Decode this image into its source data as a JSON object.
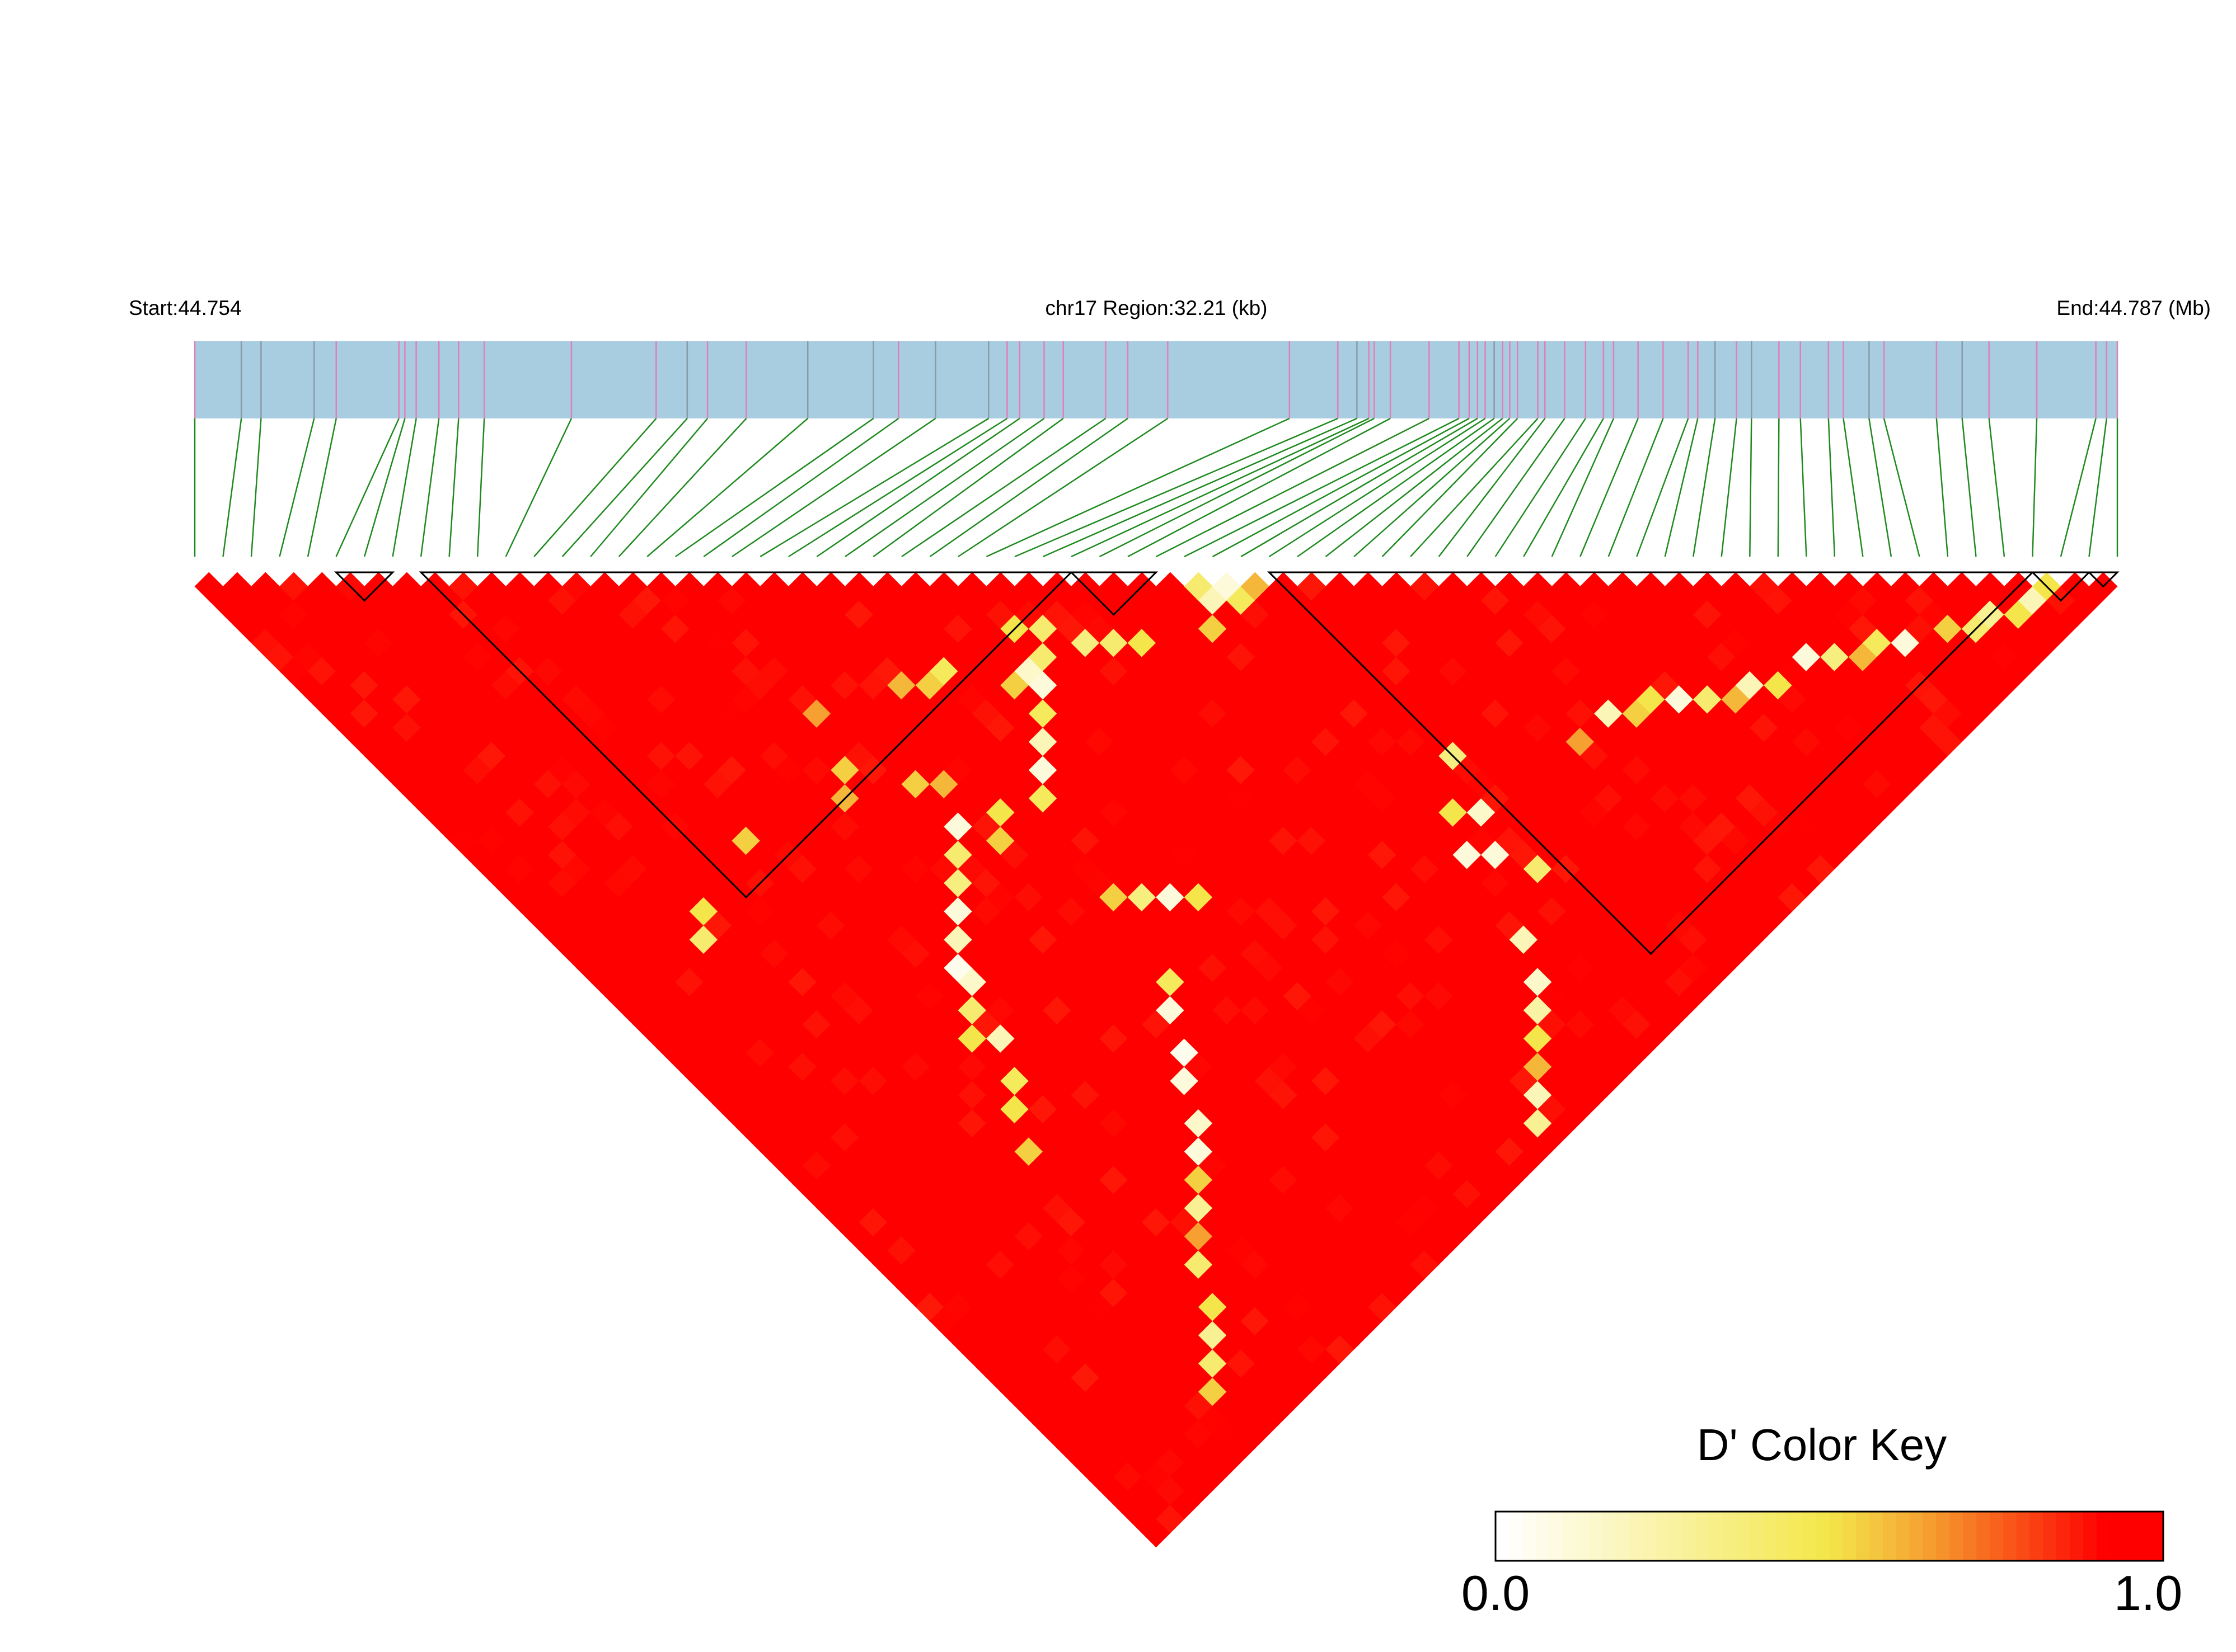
{
  "chart_data": {
    "type": "heatmap",
    "subtype": "linkage-disequilibrium triangle",
    "header": {
      "start_label": "Start:44.754",
      "region_label": "chr17 Region:32.21 (kb)",
      "end_label": "End:44.787 (Mb)"
    },
    "region": {
      "chromosome": "chr17",
      "start_mb": 44.754,
      "end_mb": 44.787,
      "length_kb": 32.21
    },
    "snp_count": 69,
    "snp_positions_kb": [
      0.0,
      0.78,
      1.11,
      2.0,
      2.37,
      3.42,
      3.52,
      3.71,
      4.09,
      4.42,
      4.85,
      6.31,
      7.73,
      8.25,
      8.59,
      9.24,
      10.27,
      11.37,
      11.79,
      12.41,
      13.3,
      13.61,
      13.82,
      14.23,
      14.55,
      15.26,
      15.63,
      16.3,
      18.34,
      19.15,
      19.47,
      19.67,
      19.76,
      20.03,
      20.68,
      21.18,
      21.35,
      21.49,
      21.62,
      21.77,
      21.91,
      22.03,
      22.16,
      22.5,
      22.62,
      22.95,
      23.3,
      23.6,
      23.77,
      24.18,
      24.6,
      25.02,
      25.18,
      25.47,
      25.83,
      26.08,
      26.54,
      26.9,
      27.37,
      27.62,
      28.05,
      28.3,
      29.18,
      29.61,
      30.06,
      30.86,
      31.85,
      32.03,
      32.21
    ],
    "tag_snp_indices": [
      1,
      2,
      3,
      13,
      16,
      17,
      19,
      20,
      30,
      39,
      53,
      55,
      60,
      63
    ],
    "blocks": [
      {
        "id": 1,
        "first_snp": 5,
        "last_snp": 7
      },
      {
        "id": 2,
        "first_snp": 8,
        "last_snp": 31
      },
      {
        "id": 3,
        "first_snp": 31,
        "last_snp": 34
      },
      {
        "id": 4,
        "first_snp": 38,
        "last_snp": 65
      },
      {
        "id": 5,
        "first_snp": 65,
        "last_snp": 67
      },
      {
        "id": 6,
        "first_snp": 67,
        "last_snp": 68
      }
    ],
    "measure": "D'",
    "value_range": [
      0.0,
      1.0
    ],
    "low_dprime_pairs": [
      {
        "i": 35,
        "j": 36,
        "d": 0.4
      },
      {
        "i": 36,
        "j": 37,
        "d": 0.1
      },
      {
        "i": 35,
        "j": 37,
        "d": 0.2
      },
      {
        "i": 36,
        "j": 38,
        "d": 0.45
      },
      {
        "i": 34,
        "j": 38,
        "d": 0.55
      },
      {
        "i": 37,
        "j": 38,
        "d": 0.6
      },
      {
        "i": 64,
        "j": 66,
        "d": 0.2
      },
      {
        "i": 63,
        "j": 66,
        "d": 0.5
      },
      {
        "i": 65,
        "j": 66,
        "d": 0.5
      },
      {
        "i": 62,
        "j": 65,
        "d": 0.3
      },
      {
        "i": 61,
        "j": 65,
        "d": 0.4
      },
      {
        "i": 60,
        "j": 64,
        "d": 0.55
      },
      {
        "i": 58,
        "j": 63,
        "d": 0.1
      },
      {
        "i": 57,
        "j": 62,
        "d": 0.45
      },
      {
        "i": 56,
        "j": 62,
        "d": 0.6
      },
      {
        "i": 55,
        "j": 61,
        "d": 0.35
      },
      {
        "i": 54,
        "j": 60,
        "d": 0.1
      },
      {
        "i": 52,
        "j": 60,
        "d": 0.5
      },
      {
        "i": 51,
        "j": 59,
        "d": 0.2
      },
      {
        "i": 50,
        "j": 59,
        "d": 0.6
      },
      {
        "i": 49,
        "j": 58,
        "d": 0.4
      },
      {
        "i": 48,
        "j": 57,
        "d": 0.1
      },
      {
        "i": 47,
        "j": 56,
        "d": 0.5
      },
      {
        "i": 46,
        "j": 56,
        "d": 0.55
      },
      {
        "i": 45,
        "j": 55,
        "d": 0.2
      },
      {
        "i": 43,
        "j": 55,
        "d": 0.65
      },
      {
        "i": 38,
        "j": 51,
        "d": 0.35
      },
      {
        "i": 36,
        "j": 53,
        "d": 0.5
      },
      {
        "i": 37,
        "j": 54,
        "d": 0.15
      },
      {
        "i": 35,
        "j": 55,
        "d": 0.1
      },
      {
        "i": 36,
        "j": 56,
        "d": 0.1
      },
      {
        "i": 37,
        "j": 58,
        "d": 0.4
      },
      {
        "i": 34,
        "j": 60,
        "d": 0.2
      },
      {
        "i": 33,
        "j": 62,
        "d": 0.15
      },
      {
        "i": 32,
        "j": 63,
        "d": 0.25
      },
      {
        "i": 31,
        "j": 64,
        "d": 0.5
      },
      {
        "i": 30,
        "j": 65,
        "d": 0.6
      },
      {
        "i": 29,
        "j": 66,
        "d": 0.2
      },
      {
        "i": 28,
        "j": 67,
        "d": 0.3
      },
      {
        "i": 23,
        "j": 30,
        "d": 0.45
      },
      {
        "i": 22,
        "j": 30,
        "d": 0.55
      },
      {
        "i": 21,
        "j": 29,
        "d": 0.6
      },
      {
        "i": 17,
        "j": 27,
        "d": 0.65
      },
      {
        "i": 27,
        "j": 33,
        "d": 0.4
      },
      {
        "i": 26,
        "j": 33,
        "d": 0.15
      },
      {
        "i": 25,
        "j": 33,
        "d": 0.55
      },
      {
        "i": 26,
        "j": 34,
        "d": 0.1
      },
      {
        "i": 25,
        "j": 35,
        "d": 0.45
      },
      {
        "i": 24,
        "j": 36,
        "d": 0.2
      },
      {
        "i": 23,
        "j": 37,
        "d": 0.1
      },
      {
        "i": 22,
        "j": 38,
        "d": 0.45
      },
      {
        "i": 20,
        "j": 37,
        "d": 0.5
      },
      {
        "i": 19,
        "j": 38,
        "d": 0.55
      },
      {
        "i": 18,
        "j": 36,
        "d": 0.1
      },
      {
        "i": 17,
        "j": 37,
        "d": 0.4
      },
      {
        "i": 16,
        "j": 38,
        "d": 0.35
      },
      {
        "i": 15,
        "j": 39,
        "d": 0.1
      },
      {
        "i": 14,
        "j": 40,
        "d": 0.2
      },
      {
        "i": 13,
        "j": 41,
        "d": 0.05
      },
      {
        "i": 13,
        "j": 42,
        "d": 0.15
      },
      {
        "i": 12,
        "j": 43,
        "d": 0.4
      },
      {
        "i": 11,
        "j": 44,
        "d": 0.5
      },
      {
        "i": 12,
        "j": 45,
        "d": 0.2
      },
      {
        "i": 11,
        "j": 47,
        "d": 0.45
      },
      {
        "i": 10,
        "j": 48,
        "d": 0.5
      },
      {
        "i": 9,
        "j": 50,
        "d": 0.55
      },
      {
        "i": 21,
        "j": 44,
        "d": 0.55
      },
      {
        "i": 22,
        "j": 45,
        "d": 0.35
      },
      {
        "i": 23,
        "j": 46,
        "d": 0.1
      },
      {
        "i": 24,
        "j": 47,
        "d": 0.5
      },
      {
        "i": 20,
        "j": 49,
        "d": 0.45
      },
      {
        "i": 19,
        "j": 50,
        "d": 0.1
      },
      {
        "i": 18,
        "j": 52,
        "d": 0.05
      },
      {
        "i": 17,
        "j": 53,
        "d": 0.1
      },
      {
        "i": 16,
        "j": 55,
        "d": 0.15
      },
      {
        "i": 15,
        "j": 56,
        "d": 0.1
      },
      {
        "i": 14,
        "j": 57,
        "d": 0.55
      },
      {
        "i": 13,
        "j": 58,
        "d": 0.3
      },
      {
        "i": 12,
        "j": 59,
        "d": 0.65
      },
      {
        "i": 11,
        "j": 60,
        "d": 0.4
      },
      {
        "i": 10,
        "j": 62,
        "d": 0.5
      },
      {
        "i": 9,
        "j": 63,
        "d": 0.3
      },
      {
        "i": 8,
        "j": 64,
        "d": 0.4
      },
      {
        "i": 7,
        "j": 65,
        "d": 0.55
      },
      {
        "i": 6,
        "j": 30,
        "d": 0.5
      },
      {
        "i": 5,
        "j": 31,
        "d": 0.4
      },
      {
        "i": 16,
        "j": 30,
        "d": 0.55
      },
      {
        "i": 15,
        "j": 31,
        "d": 0.6
      },
      {
        "i": 27,
        "j": 31,
        "d": 0.5
      },
      {
        "i": 28,
        "j": 32,
        "d": 0.4
      },
      {
        "i": 29,
        "j": 34,
        "d": 0.35
      },
      {
        "i": 30,
        "j": 35,
        "d": 0.4
      },
      {
        "i": 31,
        "j": 36,
        "d": 0.5
      },
      {
        "i": 19,
        "j": 34,
        "d": 0.6
      },
      {
        "i": 18,
        "j": 33,
        "d": 0.55
      },
      {
        "i": 10,
        "j": 29,
        "d": 0.55
      }
    ],
    "legend": {
      "title": "D' Color Key",
      "min_label": "0.0",
      "max_label": "1.0",
      "colors": [
        "#ffffff",
        "#f4e64a",
        "#f5a030",
        "#ff0000"
      ]
    },
    "colors": {
      "track": "#a8cce0",
      "marker_line": "#8a9aa8",
      "tag_line": "#e080b8",
      "connector": "#1f8a1f",
      "block_outline": "#000000"
    }
  }
}
